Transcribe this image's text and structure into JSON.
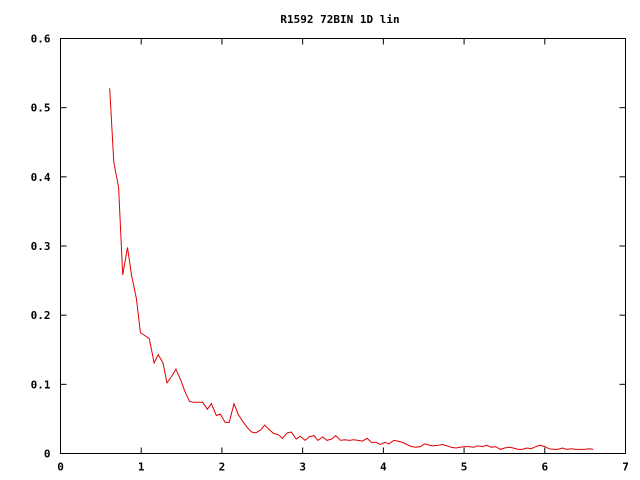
{
  "chart_data": {
    "type": "line",
    "title": "R1592 72BIN 1D lin",
    "xlabel": "",
    "ylabel": "",
    "xlim": [
      0,
      7
    ],
    "ylim": [
      0,
      0.6
    ],
    "grid": false,
    "x_ticks": [
      "0",
      "1",
      "2",
      "3",
      "4",
      "5",
      "6",
      "7"
    ],
    "y_ticks": [
      "0",
      "0.1",
      "0.2",
      "0.3",
      "0.4",
      "0.5",
      "0.6"
    ],
    "series": [
      {
        "color": "#e00000",
        "x": [
          0.61,
          0.66,
          0.72,
          0.77,
          0.83,
          0.88,
          0.94,
          0.99,
          1.05,
          1.1,
          1.16,
          1.21,
          1.27,
          1.32,
          1.38,
          1.43,
          1.49,
          1.54,
          1.6,
          1.65,
          1.71,
          1.76,
          1.82,
          1.87,
          1.93,
          1.98,
          2.04,
          2.09,
          2.15,
          2.2,
          2.26,
          2.31,
          2.37,
          2.42,
          2.48,
          2.53,
          2.59,
          2.64,
          2.7,
          2.75,
          2.81,
          2.86,
          2.92,
          2.97,
          3.03,
          3.08,
          3.14,
          3.19,
          3.25,
          3.3,
          3.36,
          3.41,
          3.47,
          3.52,
          3.58,
          3.63,
          3.69,
          3.74,
          3.8,
          3.85,
          3.91,
          3.96,
          4.02,
          4.07,
          4.13,
          4.18,
          4.24,
          4.29,
          4.35,
          4.4,
          4.46,
          4.51,
          4.57,
          4.62,
          4.68,
          4.73,
          4.79,
          4.84,
          4.9,
          4.95,
          5.01,
          5.06,
          5.12,
          5.17,
          5.23,
          5.28,
          5.34,
          5.39,
          5.45,
          5.5,
          5.56,
          5.61,
          5.67,
          5.72,
          5.78,
          5.83,
          5.89,
          5.94,
          6.0,
          6.05,
          6.11,
          6.16,
          6.22,
          6.27,
          6.33,
          6.38,
          6.44,
          6.49,
          6.55,
          6.6
        ],
        "y": [
          0.528,
          0.421,
          0.385,
          0.258,
          0.298,
          0.258,
          0.224,
          0.175,
          0.17,
          0.166,
          0.131,
          0.143,
          0.131,
          0.102,
          0.112,
          0.122,
          0.106,
          0.09,
          0.075,
          0.074,
          0.074,
          0.074,
          0.064,
          0.072,
          0.055,
          0.057,
          0.045,
          0.045,
          0.072,
          0.057,
          0.046,
          0.038,
          0.031,
          0.03,
          0.034,
          0.041,
          0.034,
          0.029,
          0.027,
          0.022,
          0.03,
          0.031,
          0.021,
          0.025,
          0.019,
          0.024,
          0.026,
          0.019,
          0.024,
          0.019,
          0.021,
          0.026,
          0.019,
          0.02,
          0.019,
          0.02,
          0.019,
          0.018,
          0.022,
          0.016,
          0.016,
          0.013,
          0.016,
          0.014,
          0.019,
          0.018,
          0.016,
          0.013,
          0.01,
          0.009,
          0.01,
          0.014,
          0.012,
          0.011,
          0.012,
          0.013,
          0.011,
          0.009,
          0.008,
          0.009,
          0.01,
          0.01,
          0.009,
          0.011,
          0.01,
          0.012,
          0.009,
          0.01,
          0.006,
          0.008,
          0.009,
          0.008,
          0.006,
          0.006,
          0.008,
          0.007,
          0.01,
          0.012,
          0.01,
          0.007,
          0.006,
          0.006,
          0.008,
          0.006,
          0.007,
          0.006,
          0.006,
          0.006,
          0.007,
          0.006
        ]
      }
    ]
  }
}
